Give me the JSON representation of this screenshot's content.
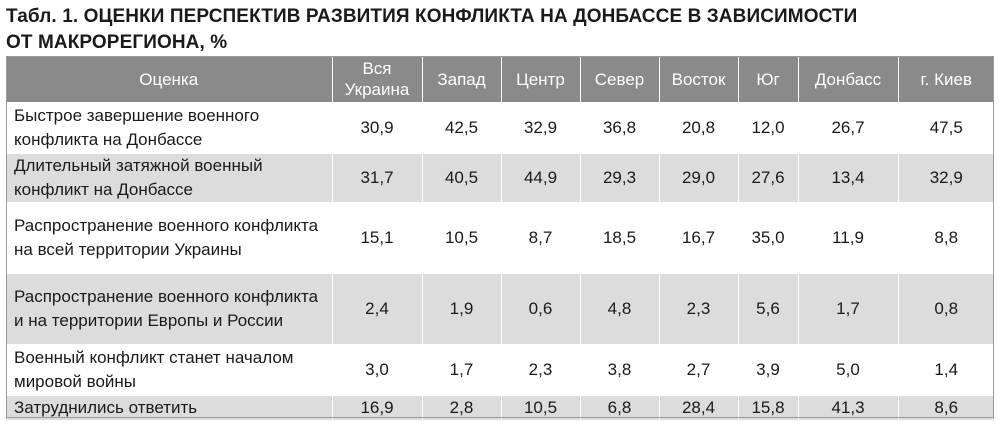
{
  "title": {
    "line1": "Табл. 1. ОЦЕНКИ ПЕРСПЕКТИВ РАЗВИТИЯ КОНФЛИКТА НА ДОНБАССЕ  В ЗАВИСИМОСТИ",
    "line2": "ОТ МАКРОРЕГИОНА, %"
  },
  "table": {
    "headers": [
      "Оценка",
      "Вся Украина",
      "Запад",
      "Центр",
      "Север",
      "Восток",
      "Юг",
      "Донбасс",
      "г. Киев"
    ],
    "rows": [
      {
        "label": "Быстрое завершение военного конфликта на Донбассе",
        "values": [
          "30,9",
          "42,5",
          "32,9",
          "36,8",
          "20,8",
          "12,0",
          "26,7",
          "47,5"
        ]
      },
      {
        "label": "Длительный затяжной военный конфликт на Донбассе",
        "values": [
          "31,7",
          "40,5",
          "44,9",
          "29,3",
          "29,0",
          "27,6",
          "13,4",
          "32,9"
        ]
      },
      {
        "label": "Распространение военного конфликта на всей территории Украины",
        "values": [
          "15,1",
          "10,5",
          "8,7",
          "18,5",
          "16,7",
          "35,0",
          "11,9",
          "8,8"
        ]
      },
      {
        "label": "Распространение военного конфликта и на территории Европы и России",
        "values": [
          "2,4",
          "1,9",
          "0,6",
          "4,8",
          "2,3",
          "5,6",
          "1,7",
          "0,8"
        ]
      },
      {
        "label": "Военный конфликт станет началом мировой войны",
        "values": [
          "3,0",
          "1,7",
          "2,3",
          "3,8",
          "2,7",
          "3,9",
          "5,0",
          "1,4"
        ]
      },
      {
        "label": "Затруднились ответить",
        "values": [
          "16,9",
          "2,8",
          "10,5",
          "6,8",
          "28,4",
          "15,8",
          "41,3",
          "8,6"
        ]
      }
    ]
  },
  "colors": {
    "header_bg": "#8a8a8a",
    "header_text": "#ffffff",
    "shaded_row": "#dcdcdc",
    "plain_row": "#ffffff"
  }
}
